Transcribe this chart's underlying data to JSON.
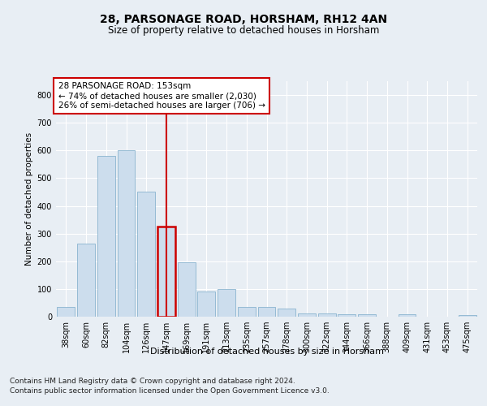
{
  "title1": "28, PARSONAGE ROAD, HORSHAM, RH12 4AN",
  "title2": "Size of property relative to detached houses in Horsham",
  "xlabel": "Distribution of detached houses by size in Horsham",
  "ylabel": "Number of detached properties",
  "categories": [
    "38sqm",
    "60sqm",
    "82sqm",
    "104sqm",
    "126sqm",
    "147sqm",
    "169sqm",
    "191sqm",
    "213sqm",
    "235sqm",
    "257sqm",
    "278sqm",
    "300sqm",
    "322sqm",
    "344sqm",
    "366sqm",
    "388sqm",
    "409sqm",
    "431sqm",
    "453sqm",
    "475sqm"
  ],
  "values": [
    35,
    265,
    580,
    600,
    450,
    325,
    195,
    90,
    100,
    35,
    35,
    30,
    12,
    12,
    10,
    10,
    0,
    8,
    0,
    0,
    5
  ],
  "highlight_index": 5,
  "bar_color": "#ccdded",
  "bar_edge_color": "#7aaac8",
  "highlight_color": "#cc0000",
  "vline_color": "#cc0000",
  "annotation_text": "28 PARSONAGE ROAD: 153sqm\n← 74% of detached houses are smaller (2,030)\n26% of semi-detached houses are larger (706) →",
  "annotation_box_color": "#ffffff",
  "annotation_box_edge": "#cc0000",
  "ylim": [
    0,
    850
  ],
  "yticks": [
    0,
    100,
    200,
    300,
    400,
    500,
    600,
    700,
    800
  ],
  "footer1": "Contains HM Land Registry data © Crown copyright and database right 2024.",
  "footer2": "Contains public sector information licensed under the Open Government Licence v3.0.",
  "bg_color": "#e8eef4",
  "plot_bg_color": "#e8eef4",
  "title1_fontsize": 10,
  "title2_fontsize": 8.5,
  "ylabel_fontsize": 7.5,
  "tick_fontsize": 7,
  "annotation_fontsize": 7.5,
  "xlabel_fontsize": 8
}
